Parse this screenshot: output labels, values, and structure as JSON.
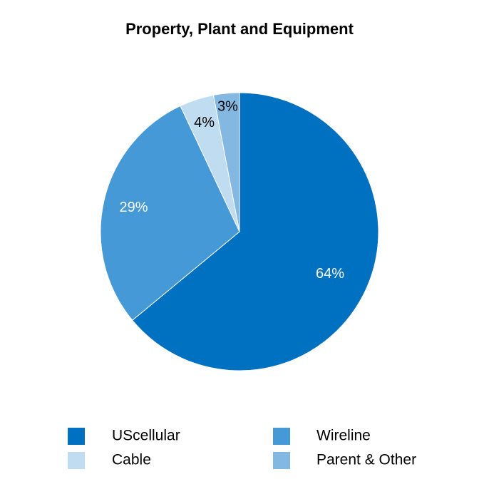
{
  "chart_data": {
    "type": "pie",
    "title": "Property, Plant and Equipment",
    "categories": [
      "UScellular",
      "Wireline",
      "Cable",
      "Parent & Other"
    ],
    "values": [
      64,
      29,
      4,
      3
    ],
    "value_labels": [
      "64%",
      "29%",
      "4%",
      "3%"
    ],
    "colors": [
      "#0070c0",
      "#4499d6",
      "#c0dcf0",
      "#82b8e2"
    ],
    "legend": "bottom"
  }
}
